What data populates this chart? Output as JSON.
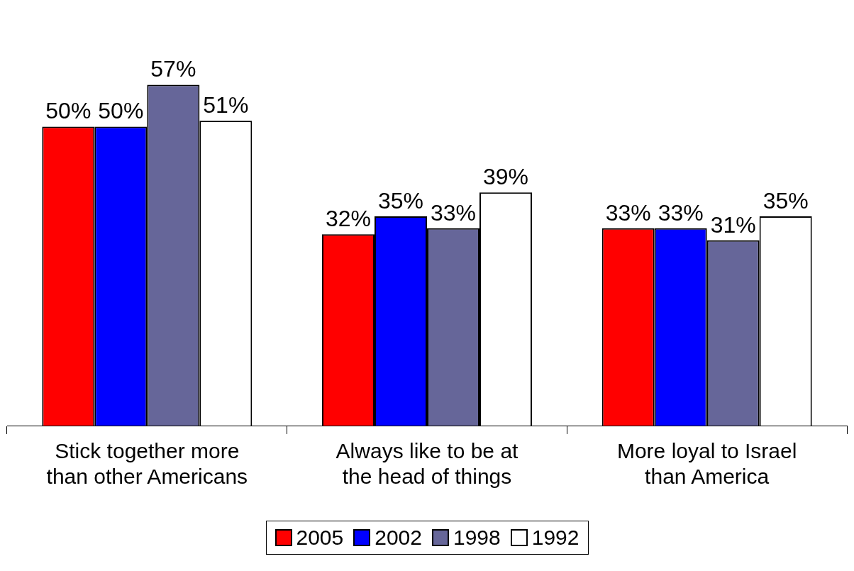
{
  "chart_data": {
    "type": "bar",
    "categories": [
      "Stick together more than other Americans",
      "Always like to be at the head of things",
      "More loyal to Israel than America"
    ],
    "series": [
      {
        "name": "2005",
        "color": "#ff0000",
        "values": [
          50,
          32,
          33
        ],
        "value_labels": [
          "50%",
          "32%",
          "33%"
        ]
      },
      {
        "name": "2002",
        "color": "#0000ff",
        "values": [
          50,
          35,
          33
        ],
        "value_labels": [
          "50%",
          "35%",
          "33%"
        ]
      },
      {
        "name": "1998",
        "color": "#666699",
        "values": [
          57,
          33,
          31
        ],
        "value_labels": [
          "57%",
          "33%",
          "31%"
        ]
      },
      {
        "name": "1992",
        "color": "#ffffff",
        "values": [
          51,
          39,
          35
        ],
        "value_labels": [
          "51%",
          "39%",
          "35%"
        ]
      }
    ],
    "legend": "bottom"
  }
}
